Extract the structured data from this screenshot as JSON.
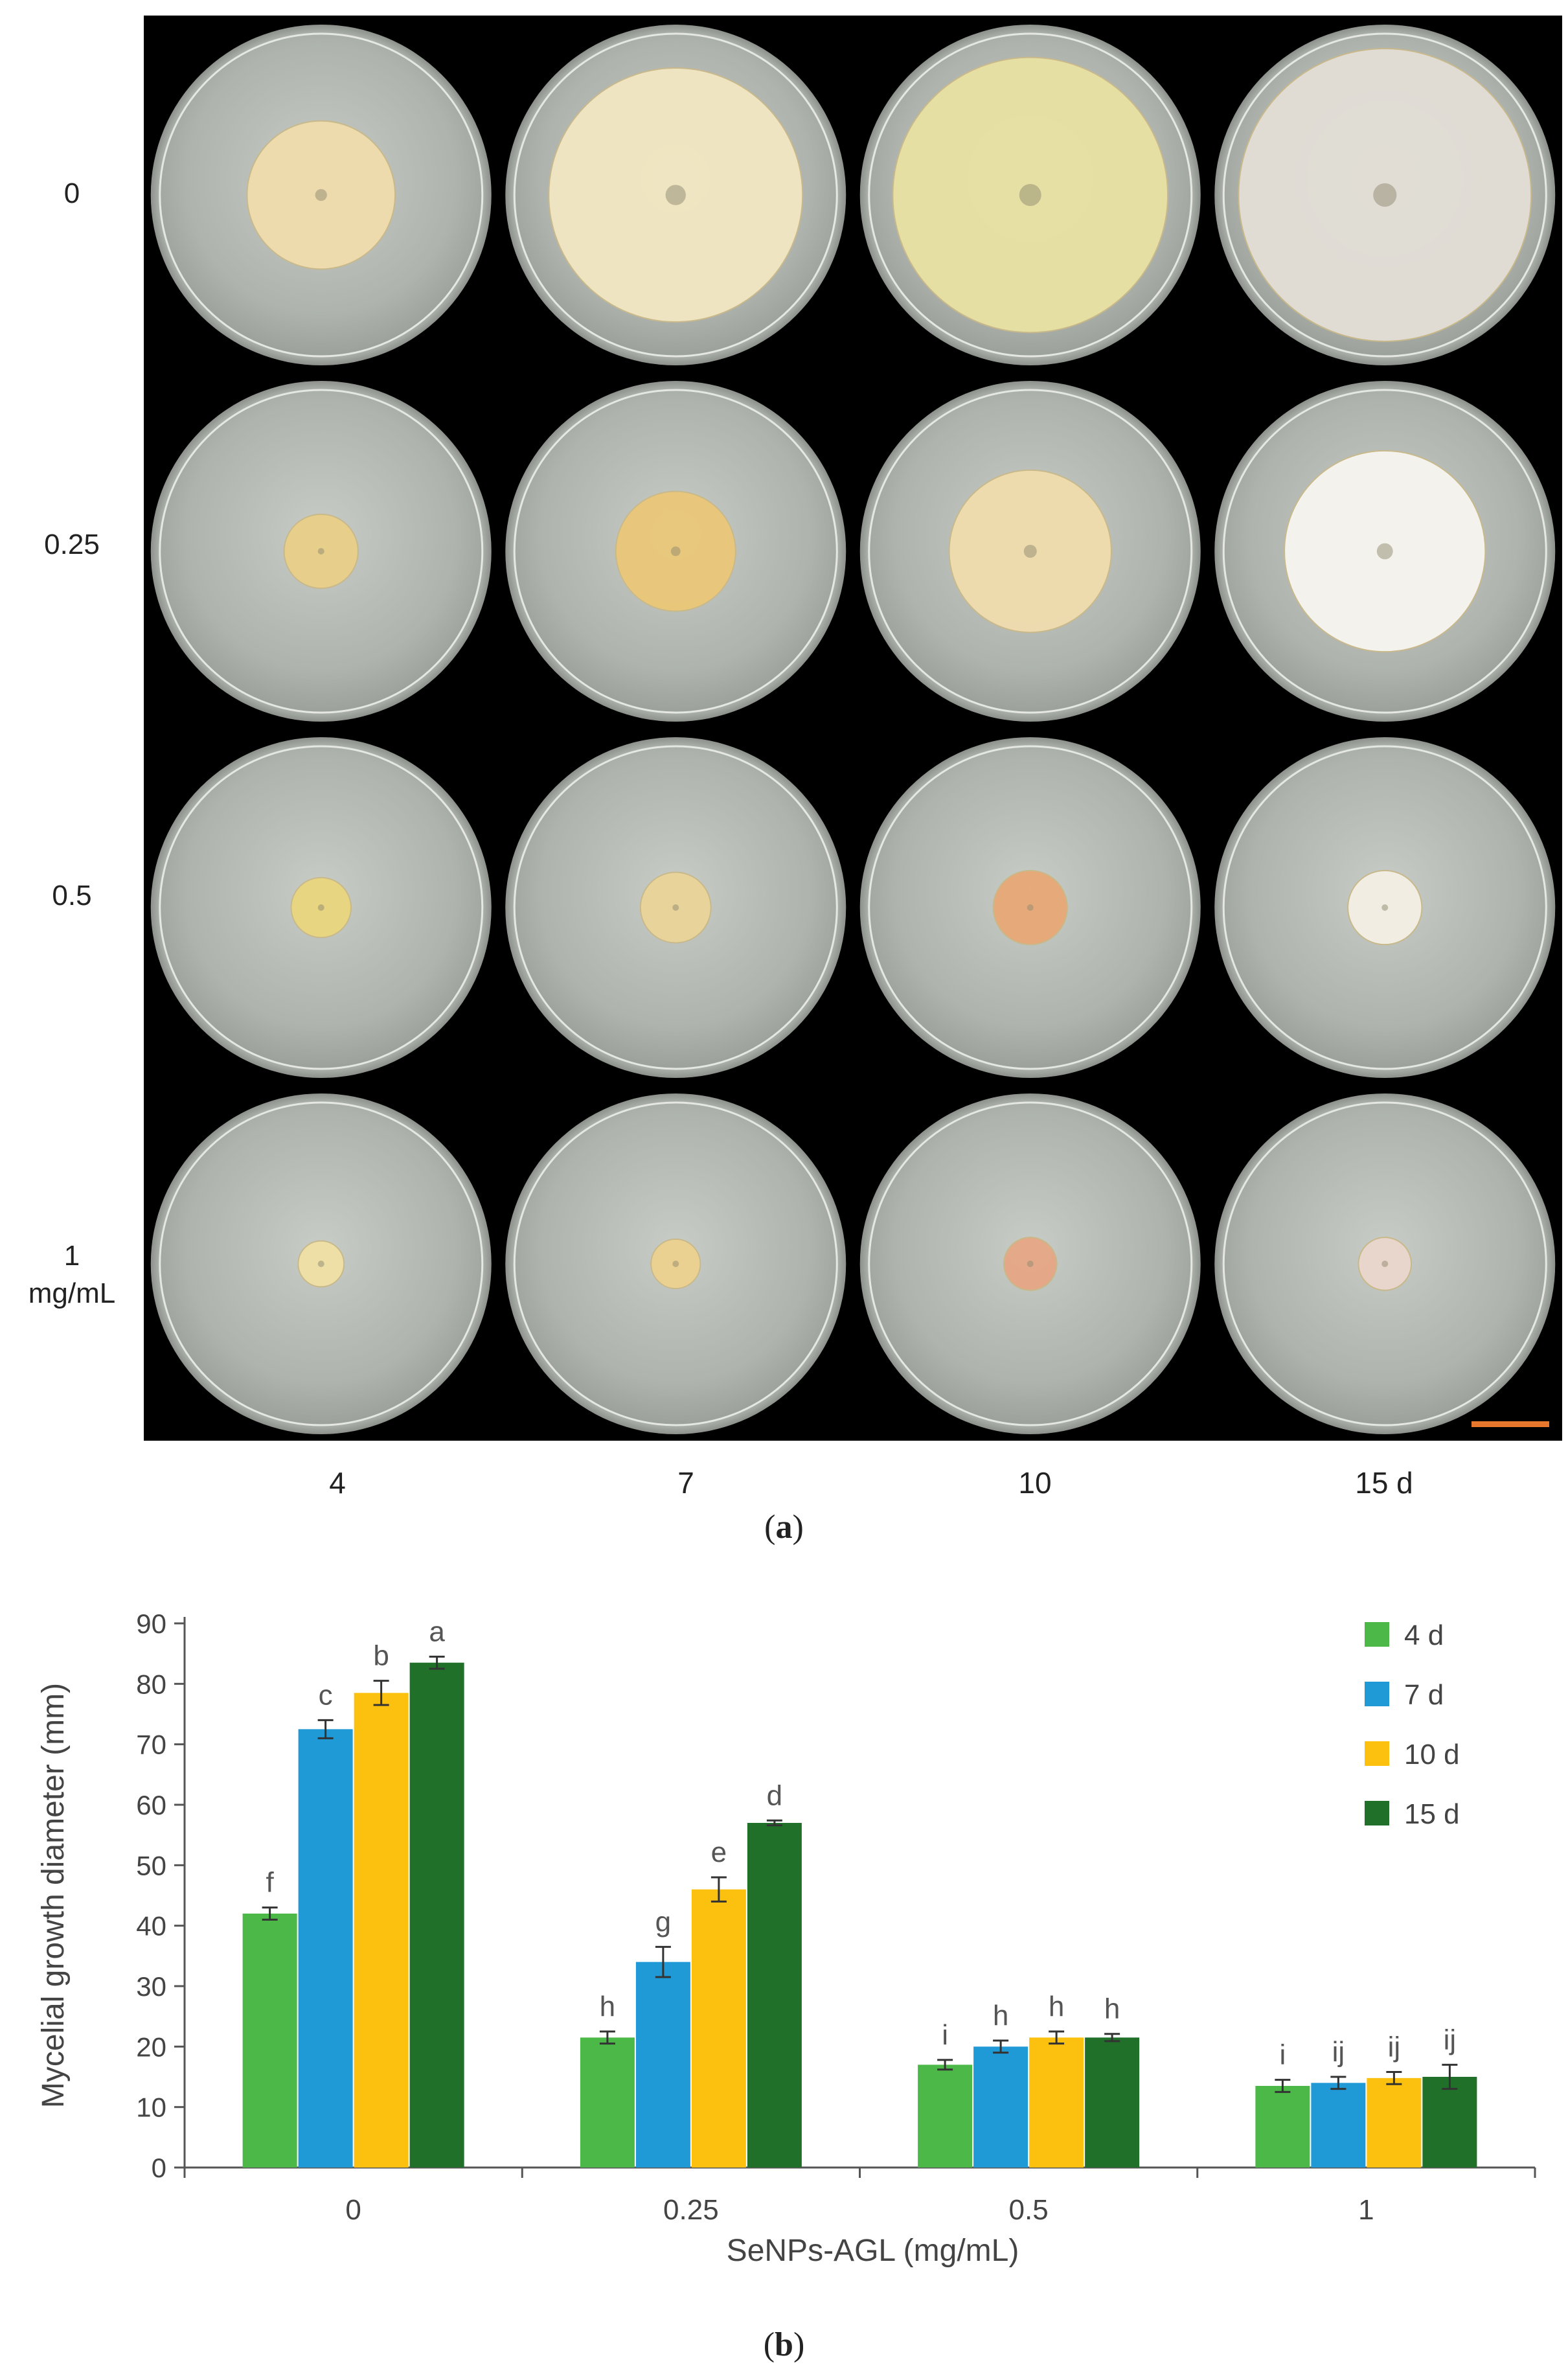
{
  "panel_a": {
    "caption_letter": "a",
    "row_labels": [
      "0",
      "0.25",
      "0.5",
      "1",
      "mg/mL"
    ],
    "column_labels": [
      "4",
      "7",
      "10",
      "15 d"
    ],
    "scale_bar_color": "#e8772e",
    "plates": [
      [
        {
          "colony_diameter_mm": 42,
          "colony_color": "#efdcae"
        },
        {
          "colony_diameter_mm": 72,
          "colony_color": "#f1e6c2"
        },
        {
          "colony_diameter_mm": 78,
          "colony_color": "#e8e1a4"
        },
        {
          "colony_diameter_mm": 83,
          "colony_color": "#e2ded6"
        }
      ],
      [
        {
          "colony_diameter_mm": 21,
          "colony_color": "#e9cf8a"
        },
        {
          "colony_diameter_mm": 34,
          "colony_color": "#eac87a"
        },
        {
          "colony_diameter_mm": 46,
          "colony_color": "#efdcae"
        },
        {
          "colony_diameter_mm": 57,
          "colony_color": "#f6f4ee"
        }
      ],
      [
        {
          "colony_diameter_mm": 17,
          "colony_color": "#e9d680"
        },
        {
          "colony_diameter_mm": 20,
          "colony_color": "#ead59a"
        },
        {
          "colony_diameter_mm": 21,
          "colony_color": "#e8a978"
        },
        {
          "colony_diameter_mm": 21,
          "colony_color": "#f3efe4"
        }
      ],
      [
        {
          "colony_diameter_mm": 13,
          "colony_color": "#efe0a6"
        },
        {
          "colony_diameter_mm": 14,
          "colony_color": "#ecd190"
        },
        {
          "colony_diameter_mm": 15,
          "colony_color": "#e6a888"
        },
        {
          "colony_diameter_mm": 15,
          "colony_color": "#ead6cc"
        }
      ]
    ]
  },
  "panel_b": {
    "caption_letter": "b"
  },
  "chart_data": {
    "type": "bar",
    "categories": [
      "0",
      "0.25",
      "0.5",
      "1"
    ],
    "xlabel": "SeNPs-AGL (mg/mL)",
    "ylabel": "Mycelial growth diameter (mm)",
    "ylim": [
      0,
      90
    ],
    "yticks": [
      0,
      10,
      20,
      30,
      40,
      50,
      60,
      70,
      80,
      90
    ],
    "grid": false,
    "legend_position": "top-right",
    "series": [
      {
        "name": "4 d",
        "color": "#4cb848",
        "values": [
          42,
          21.5,
          17,
          13.5
        ],
        "errors": [
          1,
          1,
          0.8,
          1
        ],
        "letters": [
          "f",
          "h",
          "i",
          "i"
        ]
      },
      {
        "name": "7 d",
        "color": "#1f9ad6",
        "values": [
          72.5,
          34,
          20,
          14
        ],
        "errors": [
          1.5,
          2.5,
          1,
          1
        ],
        "letters": [
          "c",
          "g",
          "h",
          "ij"
        ]
      },
      {
        "name": "10 d",
        "color": "#fcc10f",
        "values": [
          78.5,
          46,
          21.5,
          14.8
        ],
        "errors": [
          2,
          2,
          1,
          1
        ],
        "letters": [
          "b",
          "e",
          "h",
          "ij"
        ]
      },
      {
        "name": "15 d",
        "color": "#20702a",
        "values": [
          83.5,
          57,
          21.5,
          15
        ],
        "errors": [
          1,
          0.4,
          0.6,
          2
        ],
        "letters": [
          "a",
          "d",
          "h",
          "ij"
        ]
      }
    ]
  }
}
